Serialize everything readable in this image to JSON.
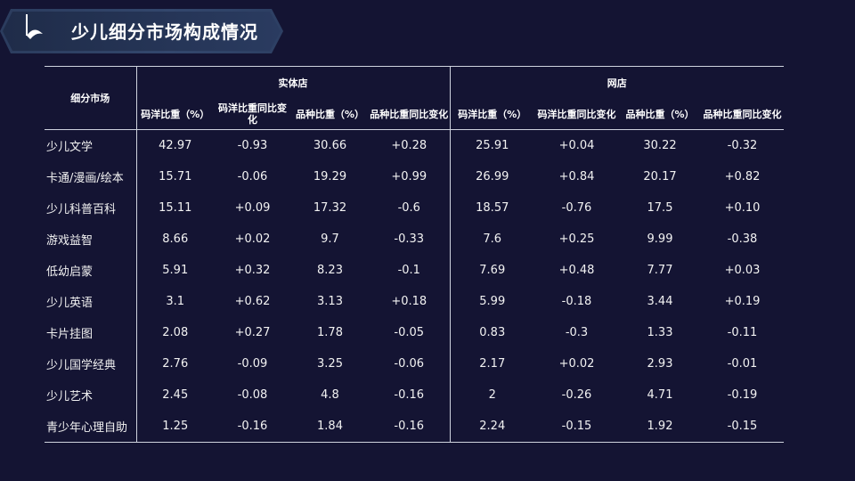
{
  "page": {
    "title": "少儿细分市场构成情况"
  },
  "table": {
    "row_header": "细分市场",
    "groups": [
      "实体店",
      "网店"
    ],
    "columns": [
      "码洋比重（%）",
      "码洋比重同比变化",
      "品种比重（%）",
      "品种比重同比变化",
      "码洋比重（%）",
      "码洋比重同比变化",
      "品种比重（%）",
      "品种比重同比变化"
    ],
    "rows": [
      {
        "market": "少儿文学",
        "values": [
          "42.97",
          "-0.93",
          "30.66",
          "+0.28",
          "25.91",
          "+0.04",
          "30.22",
          "-0.32"
        ]
      },
      {
        "market": "卡通/漫画/绘本",
        "values": [
          "15.71",
          "-0.06",
          "19.29",
          "+0.99",
          "26.99",
          "+0.84",
          "20.17",
          "+0.82"
        ]
      },
      {
        "market": "少儿科普百科",
        "values": [
          "15.11",
          "+0.09",
          "17.32",
          "-0.6",
          "18.57",
          "-0.76",
          "17.5",
          "+0.10"
        ]
      },
      {
        "market": "游戏益智",
        "values": [
          "8.66",
          "+0.02",
          "9.7",
          "-0.33",
          "7.6",
          "+0.25",
          "9.99",
          "-0.38"
        ]
      },
      {
        "market": "低幼启蒙",
        "values": [
          "5.91",
          "+0.32",
          "8.23",
          "-0.1",
          "7.69",
          "+0.48",
          "7.77",
          "+0.03"
        ]
      },
      {
        "market": "少儿英语",
        "values": [
          "3.1",
          "+0.62",
          "3.13",
          "+0.18",
          "5.99",
          "-0.18",
          "3.44",
          "+0.19"
        ]
      },
      {
        "market": "卡片挂图",
        "values": [
          "2.08",
          "+0.27",
          "1.78",
          "-0.05",
          "0.83",
          "-0.3",
          "1.33",
          "-0.11"
        ]
      },
      {
        "market": "少儿国学经典",
        "values": [
          "2.76",
          "-0.09",
          "3.25",
          "-0.06",
          "2.17",
          "+0.02",
          "2.93",
          "-0.01"
        ]
      },
      {
        "market": "少儿艺术",
        "values": [
          "2.45",
          "-0.08",
          "4.8",
          "-0.16",
          "2",
          "-0.26",
          "4.71",
          "-0.19"
        ]
      },
      {
        "market": "青少年心理自助",
        "values": [
          "1.25",
          "-0.16",
          "1.84",
          "-0.16",
          "2.24",
          "-0.15",
          "1.92",
          "-0.15"
        ]
      }
    ]
  },
  "colors": {
    "background": "#141433",
    "banner": "#2b3c5e",
    "rule": "#cfd3de"
  }
}
